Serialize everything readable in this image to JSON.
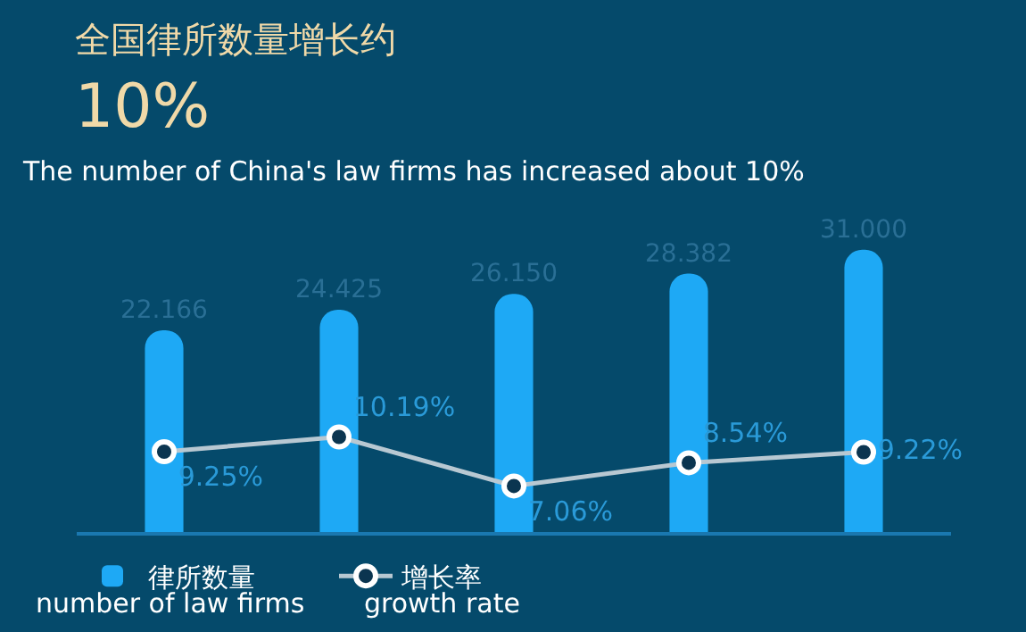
{
  "chart_data": [
    {
      "type": "bar",
      "title": "全国律所数量增长约",
      "subtitle": "10%",
      "annotations": [
        "The number of China's law firms has increased about 10%",
        "number of law firms"
      ],
      "categories": [
        null,
        null,
        null,
        null,
        null
      ],
      "series": [
        {
          "name": "律所数量",
          "color": "#1ea9f5",
          "values": [
            22.166,
            24.425,
            26.15,
            28.382,
            31.0
          ],
          "value_labels": [
            "22.166",
            "24.425",
            "26.150",
            "28.382",
            "31.000"
          ]
        }
      ],
      "tick_labels": false,
      "legend": "bottom left"
    },
    {
      "type": "line",
      "annotations": [
        "growth rate"
      ],
      "categories": [
        null,
        null,
        null,
        null,
        null
      ],
      "series": [
        {
          "name": "增长率",
          "color": "#b8c8d2",
          "values": [
            9.25,
            10.19,
            7.06,
            8.54,
            9.22
          ],
          "value_labels": [
            "9.25%",
            "10.19%",
            "7.06%",
            "8.54%",
            "9.22%"
          ]
        }
      ],
      "marker": "circle",
      "tick_labels": false,
      "legend": "bottom left"
    }
  ]
}
